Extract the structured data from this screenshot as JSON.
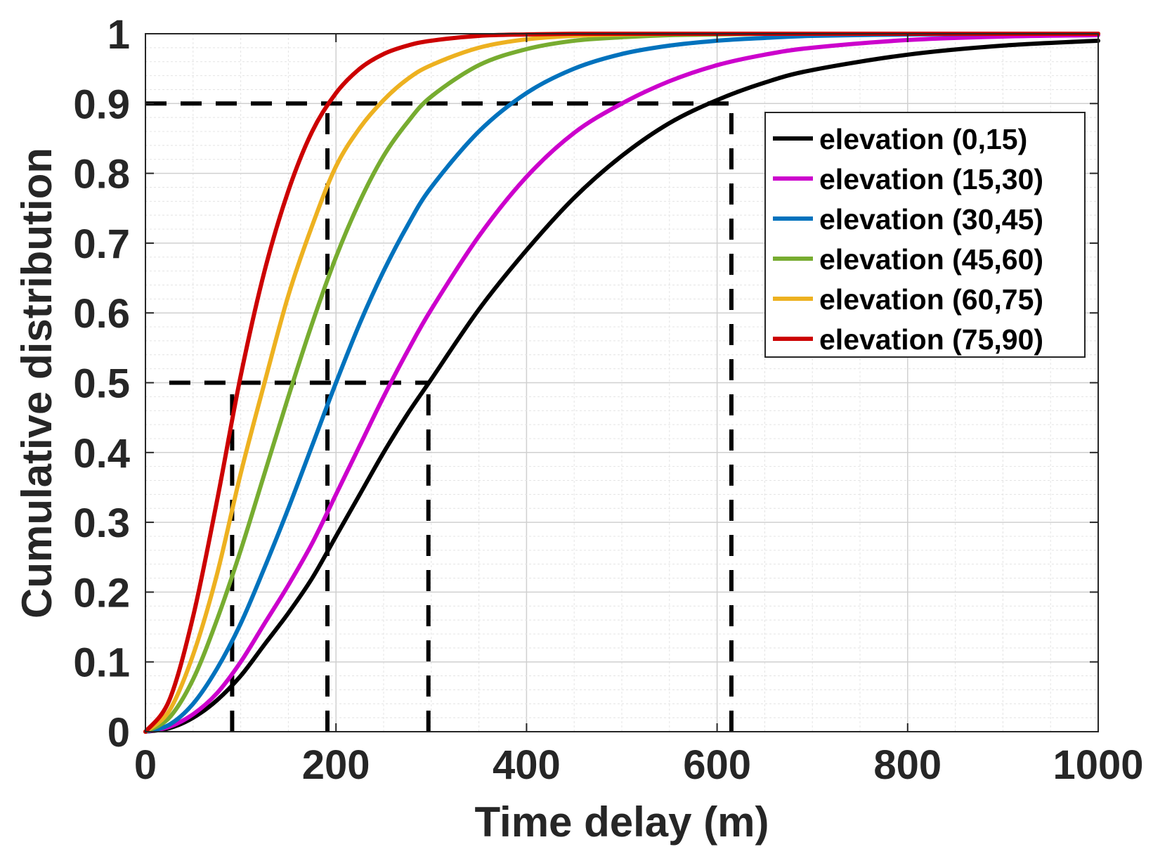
{
  "chart_data": {
    "type": "line",
    "title": "",
    "xlabel": "Time delay (m)",
    "ylabel": "Cumulative distribution",
    "xlim": [
      0,
      1000
    ],
    "ylim": [
      0,
      1
    ],
    "grid": true,
    "minor_grid": true,
    "legend_position": "top-right",
    "x_ticks": [
      "0",
      "200",
      "400",
      "600",
      "800",
      "1000"
    ],
    "y_ticks": [
      "0",
      "0.1",
      "0.2",
      "0.3",
      "0.4",
      "0.5",
      "0.6",
      "0.7",
      "0.8",
      "0.9",
      "1"
    ],
    "x": [
      0,
      25,
      50,
      75,
      100,
      125,
      150,
      175,
      200,
      225,
      250,
      275,
      300,
      350,
      400,
      450,
      500,
      550,
      600,
      650,
      700,
      800,
      900,
      1000
    ],
    "series": [
      {
        "name": "elevation (0,15)",
        "color": "#000000",
        "values": [
          0,
          0.005,
          0.02,
          0.045,
          0.08,
          0.125,
          0.17,
          0.22,
          0.28,
          0.34,
          0.4,
          0.455,
          0.505,
          0.605,
          0.69,
          0.765,
          0.825,
          0.872,
          0.905,
          0.93,
          0.948,
          0.97,
          0.983,
          0.99
        ]
      },
      {
        "name": "elevation (15,30)",
        "color": "#cc00cc",
        "values": [
          0,
          0.007,
          0.025,
          0.055,
          0.1,
          0.155,
          0.21,
          0.27,
          0.34,
          0.41,
          0.48,
          0.545,
          0.605,
          0.71,
          0.795,
          0.858,
          0.9,
          0.932,
          0.955,
          0.97,
          0.98,
          0.991,
          0.996,
          0.998
        ]
      },
      {
        "name": "elevation (30,45)",
        "color": "#0072bd",
        "values": [
          0,
          0.01,
          0.04,
          0.09,
          0.155,
          0.235,
          0.32,
          0.41,
          0.5,
          0.585,
          0.66,
          0.725,
          0.78,
          0.86,
          0.915,
          0.95,
          0.971,
          0.983,
          0.99,
          0.994,
          0.997,
          0.999,
          1.0,
          1.0
        ]
      },
      {
        "name": "elevation (45,60)",
        "color": "#77ac30",
        "values": [
          0,
          0.02,
          0.075,
          0.16,
          0.26,
          0.37,
          0.48,
          0.585,
          0.68,
          0.76,
          0.825,
          0.873,
          0.91,
          0.955,
          0.978,
          0.99,
          0.995,
          0.998,
          0.999,
          1.0,
          1.0,
          1.0,
          1.0,
          1.0
        ]
      },
      {
        "name": "elevation (60,75)",
        "color": "#edb120",
        "values": [
          0,
          0.03,
          0.11,
          0.225,
          0.37,
          0.5,
          0.625,
          0.725,
          0.81,
          0.865,
          0.905,
          0.935,
          0.955,
          0.98,
          0.992,
          0.997,
          0.999,
          1.0,
          1.0,
          1.0,
          1.0,
          1.0,
          1.0,
          1.0
        ]
      },
      {
        "name": "elevation (75,90)",
        "color": "#cc0000",
        "values": [
          0,
          0.045,
          0.165,
          0.33,
          0.51,
          0.66,
          0.775,
          0.86,
          0.915,
          0.95,
          0.971,
          0.983,
          0.99,
          0.997,
          0.999,
          1.0,
          1.0,
          1.0,
          1.0,
          1.0,
          1.0,
          1.0,
          1.0,
          1.0
        ]
      }
    ],
    "reference_lines": [
      {
        "kind": "horizontal",
        "y": 0.9,
        "x_from": 0,
        "x_to": 615
      },
      {
        "kind": "horizontal",
        "y": 0.5,
        "x_from": 25,
        "x_to": 297
      },
      {
        "kind": "vertical",
        "x": 91,
        "y_from": 0,
        "y_to": 0.5
      },
      {
        "kind": "vertical",
        "x": 191,
        "y_from": 0,
        "y_to": 0.9
      },
      {
        "kind": "vertical",
        "x": 297,
        "y_from": 0,
        "y_to": 0.5
      },
      {
        "kind": "vertical",
        "x": 615,
        "y_from": 0,
        "y_to": 0.9
      }
    ]
  }
}
